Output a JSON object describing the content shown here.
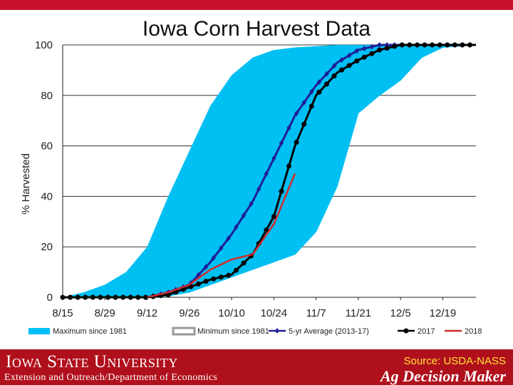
{
  "title": "Iowa Corn Harvest Data",
  "footer": {
    "university": "Iowa State University",
    "department": "Extension and Outreach/Department of Economics",
    "source": "Source: USDA-NASS",
    "brand": "Ag Decision Maker"
  },
  "colors": {
    "band": "#00bff3",
    "min_line": "#999999",
    "avg": "#1f1f99",
    "y2017": "#000000",
    "y2018": "#d42b2b",
    "footer_red": "#b0101c"
  },
  "chart_data": {
    "type": "line",
    "title": "Iowa Corn Harvest Data",
    "xlabel": "",
    "ylabel": "% Harvested",
    "ylim": [
      0,
      100
    ],
    "yticks": [
      0,
      20,
      40,
      60,
      80,
      100
    ],
    "xticks": [
      "8/15",
      "8/29",
      "9/12",
      "9/26",
      "10/10",
      "10/24",
      "11/7",
      "11/21",
      "12/5",
      "12/19"
    ],
    "x_unit": "day of year",
    "xticks_doy": [
      227,
      241,
      255,
      269,
      283,
      297,
      311,
      325,
      339,
      353
    ],
    "xlim": [
      227,
      364
    ],
    "legend_position": "bottom",
    "series": [
      {
        "name": "Maximum since 1981",
        "style": "area",
        "x": [
          227,
          234,
          241,
          248,
          255,
          262,
          269,
          276,
          283,
          290,
          297,
          304,
          311,
          318,
          325,
          332,
          339,
          346,
          353,
          364
        ],
        "values": [
          0,
          2,
          5,
          10,
          20,
          40,
          58,
          76,
          88,
          95,
          98,
          99,
          99.5,
          100,
          100,
          100,
          100,
          100,
          100,
          100
        ]
      },
      {
        "name": "Minimum since 1981",
        "style": "area-bottom",
        "x": [
          227,
          234,
          241,
          248,
          255,
          262,
          269,
          276,
          283,
          290,
          297,
          304,
          311,
          318,
          325,
          332,
          339,
          346,
          353,
          364
        ],
        "values": [
          0,
          0,
          0,
          0,
          0,
          0.5,
          2,
          5,
          8,
          11,
          14,
          17,
          26,
          44,
          73,
          80,
          86,
          95,
          99,
          100
        ]
      },
      {
        "name": "5-yr Average (2013-17)",
        "style": "line-diamond",
        "x": [
          227,
          234,
          241,
          248,
          255,
          262,
          269,
          276,
          283,
          290,
          297,
          304,
          311,
          318,
          325,
          332,
          339,
          346,
          353,
          364
        ],
        "values": [
          0,
          0,
          0,
          0,
          0,
          2,
          5,
          14,
          25,
          38,
          55,
          72,
          84,
          93,
          98,
          100,
          100,
          100,
          100,
          100
        ]
      },
      {
        "name": "2017",
        "style": "line-circle",
        "x": [
          227,
          234,
          241,
          248,
          255,
          262,
          269,
          276,
          283,
          290,
          297,
          304,
          311,
          318,
          325,
          332,
          339,
          346,
          353,
          364
        ],
        "values": [
          0,
          0,
          0,
          0,
          0,
          1,
          4,
          7,
          9,
          17,
          32,
          60,
          80,
          89,
          94,
          98,
          100,
          100,
          100,
          100
        ]
      },
      {
        "name": "2018",
        "style": "line",
        "x": [
          255,
          262,
          269,
          276,
          283,
          290,
          297,
          304
        ],
        "values": [
          0,
          2,
          5,
          11,
          15,
          17,
          29,
          49
        ]
      }
    ]
  }
}
